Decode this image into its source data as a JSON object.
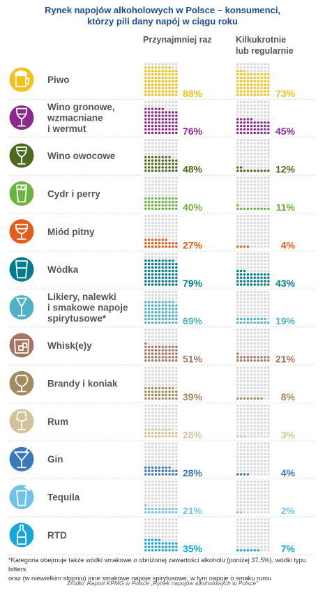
{
  "title_line1": "Rynek napojów alkoholowych w Polsce – konsumenci,",
  "title_line2": "którzy pili dany napój w ciągu roku",
  "footnote_line1": "*Kategoria obejmuje także wódki smakowe o obniżonej zawartości alkoholu (poniżej 37,5%), wódki typu bitters",
  "footnote_line2": "oraz (w niewielkim stopniu) inne smakowe napoje spirytusowe, w tym napoje o smaku rumu",
  "source": "Źródło: Raport KPMG w Polsce „Rynek napojów alkoholowych w Polsce\"",
  "colors": {
    "title": "#1f4b8f",
    "empty_dot": "#d9d9d9",
    "row_divider": "#cccccc"
  },
  "chart_data": {
    "type": "table",
    "unit": "%",
    "columns": [
      {
        "label_line1": "Przynajmniej raz",
        "label_line2": ""
      },
      {
        "label_line1": "Kilkukrotnie",
        "label_line2": "lub regularnie"
      }
    ],
    "rows": [
      {
        "label": [
          "Piwo"
        ],
        "icon": "beer-mug-icon",
        "color": "#f2c21b",
        "at_least_once": 88,
        "regularly": 73
      },
      {
        "label": [
          "Wino gronowe,",
          "wzmacniane",
          "i wermut"
        ],
        "icon": "wine-glass-icon",
        "color": "#8b2a8c",
        "at_least_once": 76,
        "regularly": 45
      },
      {
        "label": [
          "Wino owocowe"
        ],
        "icon": "fruit-wine-glass-icon",
        "color": "#4c6b1f",
        "at_least_once": 48,
        "regularly": 12
      },
      {
        "label": [
          "Cydr i perry"
        ],
        "icon": "cider-glass-icon",
        "color": "#6cb33f",
        "at_least_once": 40,
        "regularly": 11
      },
      {
        "label": [
          "Miód pitny"
        ],
        "icon": "mead-goblet-icon",
        "color": "#e35d1b",
        "at_least_once": 27,
        "regularly": 4
      },
      {
        "label": [
          "Wódka"
        ],
        "icon": "shot-glass-icon",
        "color": "#007c8c",
        "at_least_once": 79,
        "regularly": 43
      },
      {
        "label": [
          "Likiery, nalewki",
          "i smakowe napoje",
          "spirytusowe*"
        ],
        "icon": "liqueur-glass-icon",
        "color": "#4fb0c6",
        "at_least_once": 69,
        "regularly": 19
      },
      {
        "label": [
          "Whisk(e)y"
        ],
        "icon": "whisky-glass-icon",
        "color": "#a47662",
        "at_least_once": 51,
        "regularly": 21
      },
      {
        "label": [
          "Brandy i koniak"
        ],
        "icon": "brandy-snifter-icon",
        "color": "#a48a5c",
        "at_least_once": 39,
        "regularly": 8
      },
      {
        "label": [
          "Rum"
        ],
        "icon": "rum-glass-icon",
        "color": "#d2c39a",
        "at_least_once": 28,
        "regularly": 3
      },
      {
        "label": [
          "Gin"
        ],
        "icon": "cocktail-glass-icon",
        "color": "#3a78b8",
        "at_least_once": 28,
        "regularly": 4
      },
      {
        "label": [
          "Tequila"
        ],
        "icon": "tequila-glass-icon",
        "color": "#6fc3e8",
        "at_least_once": 21,
        "regularly": 2
      },
      {
        "label": [
          "RTD"
        ],
        "icon": "bottle-icon",
        "color": "#16a7d8",
        "at_least_once": 35,
        "regularly": 7
      }
    ]
  }
}
